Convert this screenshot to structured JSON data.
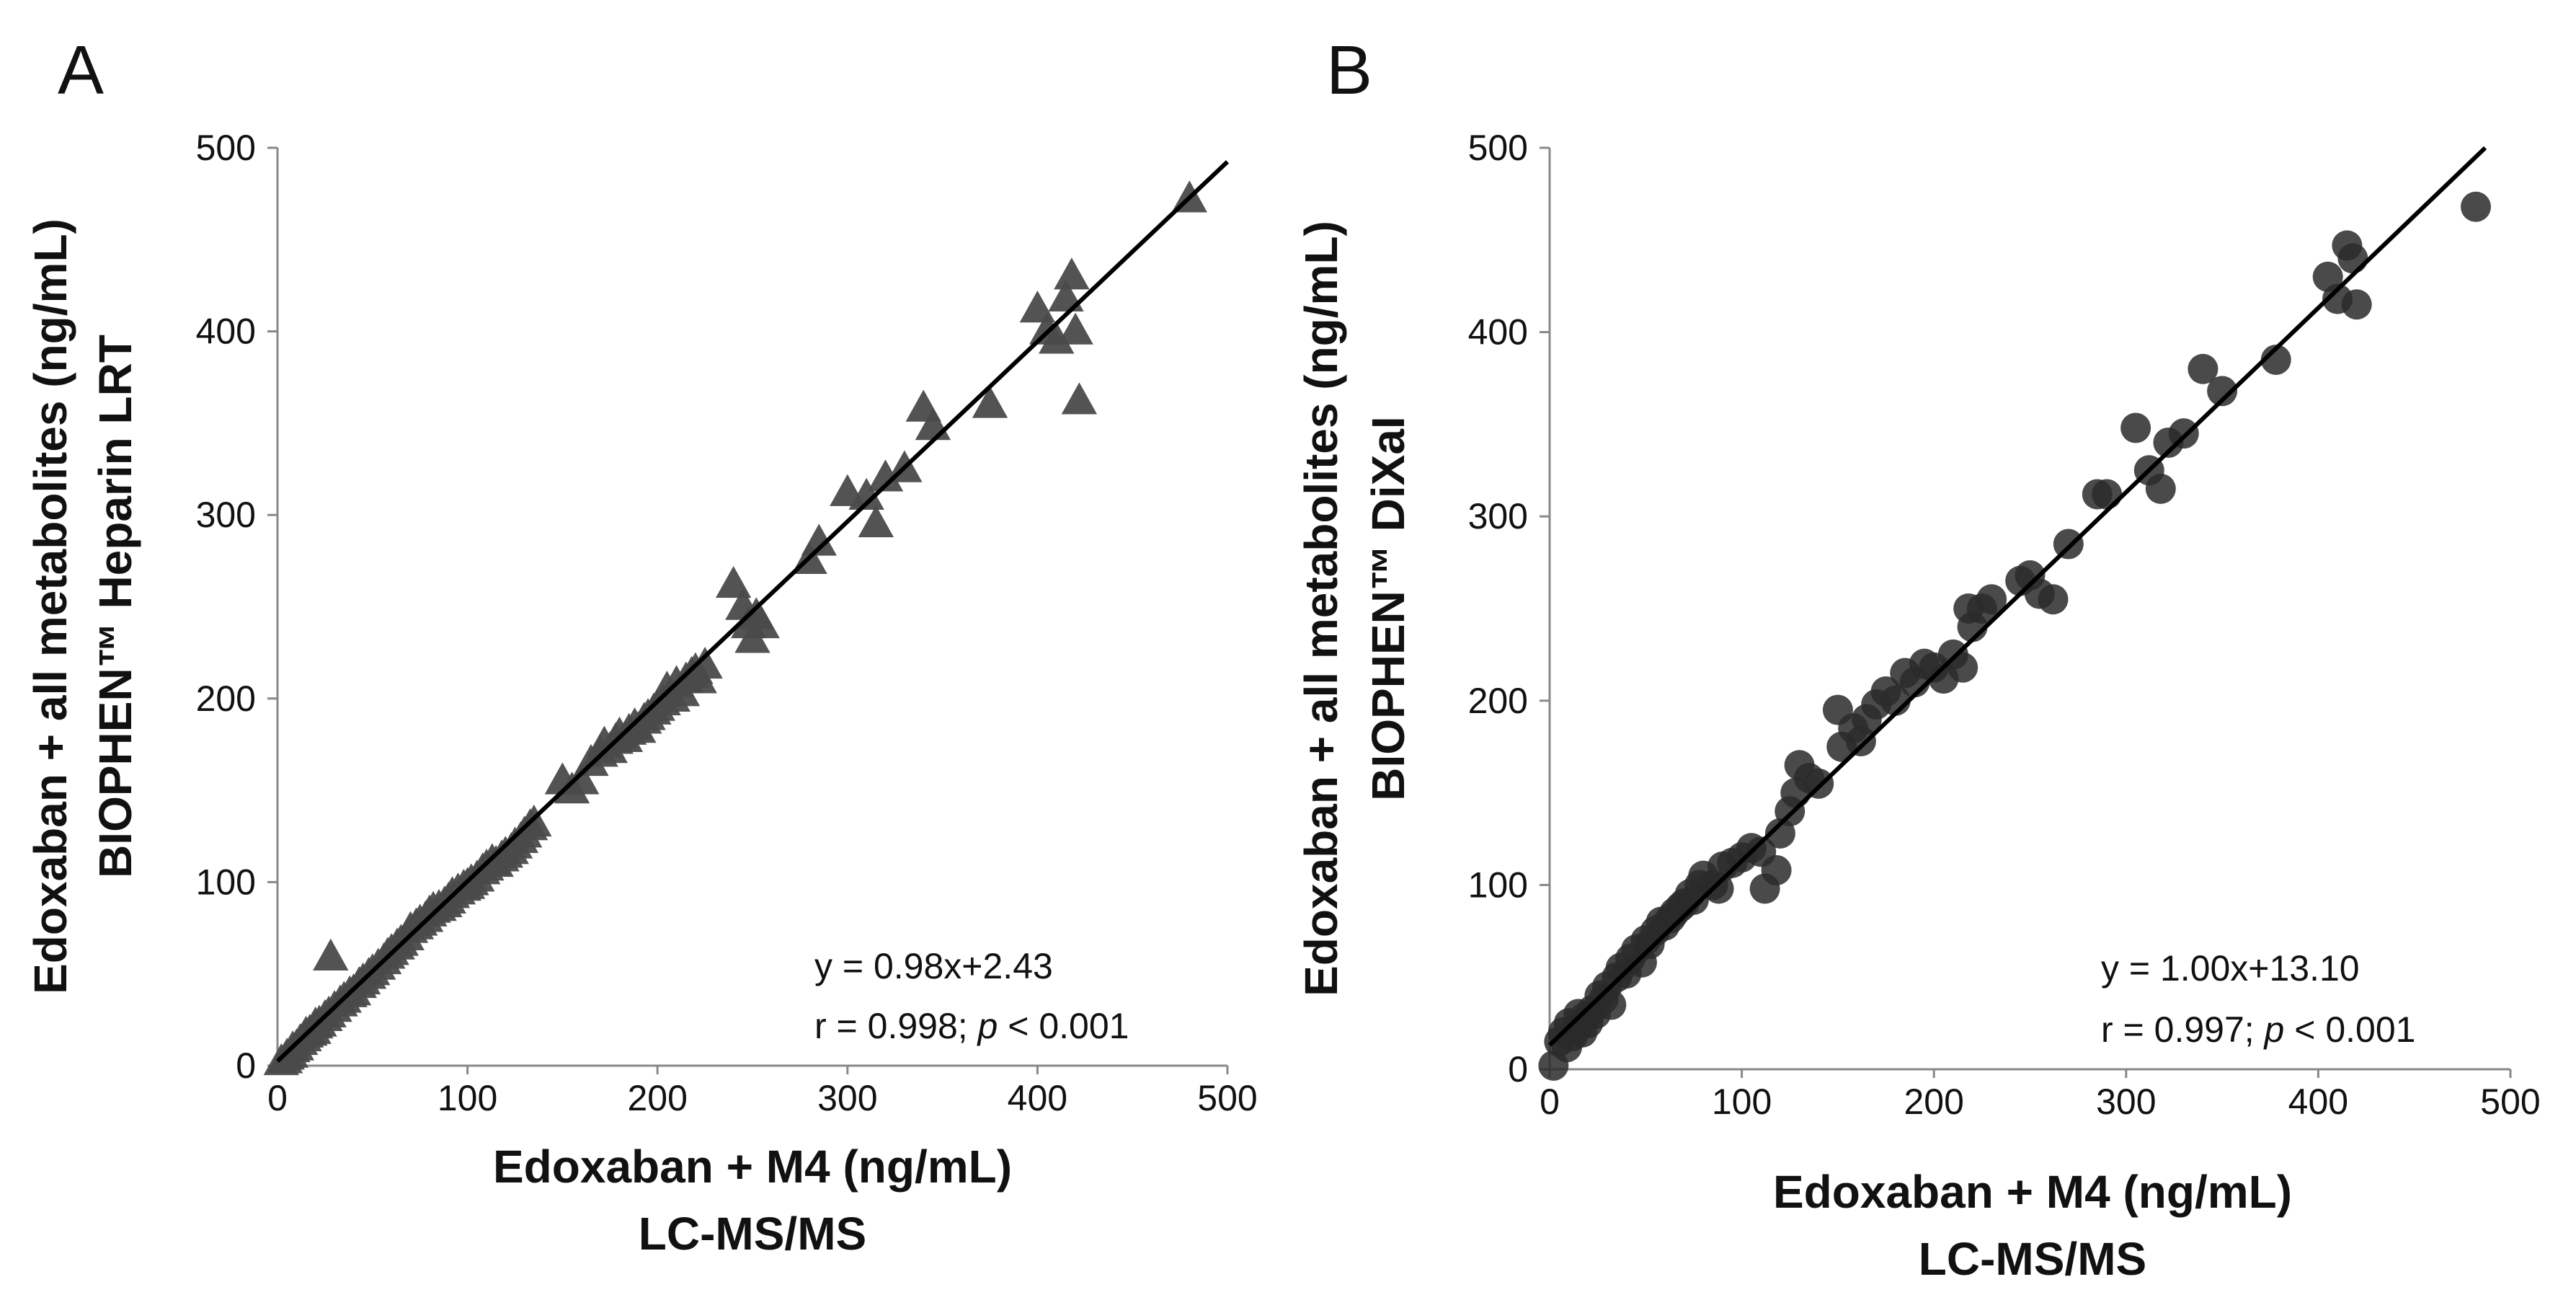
{
  "chart_data": [
    {
      "panel": "A",
      "type": "scatter",
      "marker": "triangle",
      "marker_color": "#4a4a4a",
      "xlabel": [
        "Edoxaban + M4 (ng/mL)",
        "LC-MS/MS"
      ],
      "ylabel": [
        "Edoxaban + all metabolites (ng/mL)",
        "BIOPHEN™ Heparin LRT"
      ],
      "xlim": [
        0,
        500
      ],
      "ylim": [
        0,
        500
      ],
      "xticks": [
        "0",
        "100",
        "200",
        "300",
        "400",
        "500"
      ],
      "yticks": [
        "0",
        "100",
        "200",
        "300",
        "400",
        "500"
      ],
      "equation": "y = 0.98x+2.43",
      "stats_prefix": "r = 0.998; ",
      "stats_p": "p",
      "stats_suffix": " < 0.001",
      "fit": {
        "slope": 0.98,
        "intercept": 2.43
      },
      "points": [
        [
          2,
          2
        ],
        [
          4,
          3
        ],
        [
          5,
          5
        ],
        [
          7,
          6
        ],
        [
          8,
          9
        ],
        [
          10,
          10
        ],
        [
          12,
          13
        ],
        [
          14,
          15
        ],
        [
          15,
          17
        ],
        [
          17,
          18
        ],
        [
          19,
          19
        ],
        [
          20,
          22
        ],
        [
          22,
          23
        ],
        [
          25,
          26
        ],
        [
          27,
          28
        ],
        [
          28,
          59
        ],
        [
          30,
          31
        ],
        [
          33,
          34
        ],
        [
          35,
          36
        ],
        [
          38,
          39
        ],
        [
          40,
          40
        ],
        [
          43,
          44
        ],
        [
          45,
          46
        ],
        [
          48,
          49
        ],
        [
          50,
          51
        ],
        [
          53,
          54
        ],
        [
          56,
          57
        ],
        [
          58,
          60
        ],
        [
          60,
          62
        ],
        [
          63,
          65
        ],
        [
          65,
          67
        ],
        [
          68,
          70
        ],
        [
          70,
          74
        ],
        [
          73,
          76
        ],
        [
          75,
          78
        ],
        [
          78,
          80
        ],
        [
          80,
          83
        ],
        [
          82,
          85
        ],
        [
          85,
          86
        ],
        [
          88,
          88
        ],
        [
          90,
          90
        ],
        [
          92,
          93
        ],
        [
          95,
          95
        ],
        [
          98,
          97
        ],
        [
          100,
          98
        ],
        [
          102,
          100
        ],
        [
          105,
          102
        ],
        [
          108,
          106
        ],
        [
          110,
          108
        ],
        [
          113,
          111
        ],
        [
          115,
          110
        ],
        [
          118,
          113
        ],
        [
          120,
          115
        ],
        [
          123,
          117
        ],
        [
          125,
          120
        ],
        [
          128,
          123
        ],
        [
          130,
          126
        ],
        [
          133,
          130
        ],
        [
          135,
          132
        ],
        [
          150,
          155
        ],
        [
          155,
          150
        ],
        [
          160,
          155
        ],
        [
          165,
          165
        ],
        [
          170,
          170
        ],
        [
          172,
          175
        ],
        [
          175,
          172
        ],
        [
          178,
          177
        ],
        [
          180,
          180
        ],
        [
          183,
          178
        ],
        [
          185,
          182
        ],
        [
          188,
          185
        ],
        [
          190,
          183
        ],
        [
          193,
          188
        ],
        [
          195,
          190
        ],
        [
          198,
          193
        ],
        [
          200,
          195
        ],
        [
          203,
          198
        ],
        [
          205,
          205
        ],
        [
          208,
          200
        ],
        [
          210,
          208
        ],
        [
          213,
          203
        ],
        [
          215,
          210
        ],
        [
          218,
          213
        ],
        [
          220,
          215
        ],
        [
          222,
          210
        ],
        [
          225,
          218
        ],
        [
          240,
          262
        ],
        [
          245,
          250
        ],
        [
          248,
          240
        ],
        [
          250,
          232
        ],
        [
          252,
          245
        ],
        [
          255,
          240
        ],
        [
          280,
          275
        ],
        [
          285,
          285
        ],
        [
          300,
          312
        ],
        [
          310,
          310
        ],
        [
          315,
          295
        ],
        [
          320,
          320
        ],
        [
          330,
          325
        ],
        [
          340,
          358
        ],
        [
          345,
          348
        ],
        [
          375,
          360
        ],
        [
          400,
          412
        ],
        [
          405,
          400
        ],
        [
          410,
          395
        ],
        [
          415,
          418
        ],
        [
          418,
          430
        ],
        [
          420,
          400
        ],
        [
          422,
          362
        ],
        [
          480,
          472
        ]
      ]
    },
    {
      "panel": "B",
      "type": "scatter",
      "marker": "circle",
      "marker_color": "#2a2a2a",
      "xlabel": [
        "Edoxaban + M4 (ng/mL)",
        "LC-MS/MS"
      ],
      "ylabel": [
        "Edoxaban + all metabolites (ng/mL)",
        "BIOPHEN™ DiXaI"
      ],
      "xlim": [
        0,
        500
      ],
      "ylim": [
        0,
        500
      ],
      "xticks": [
        "0",
        "100",
        "200",
        "300",
        "400",
        "500"
      ],
      "yticks": [
        "0",
        "100",
        "200",
        "300",
        "400",
        "500"
      ],
      "equation": "y = 1.00x+13.10",
      "stats_prefix": "r = 0.997; ",
      "stats_p": "p",
      "stats_suffix": " < 0.001",
      "fit": {
        "slope": 1.0,
        "intercept": 13.1
      },
      "points": [
        [
          2,
          2
        ],
        [
          5,
          15
        ],
        [
          7,
          20
        ],
        [
          9,
          12
        ],
        [
          10,
          25
        ],
        [
          12,
          18
        ],
        [
          14,
          22
        ],
        [
          15,
          30
        ],
        [
          17,
          20
        ],
        [
          18,
          28
        ],
        [
          20,
          25
        ],
        [
          22,
          32
        ],
        [
          24,
          30
        ],
        [
          26,
          40
        ],
        [
          28,
          38
        ],
        [
          30,
          45
        ],
        [
          32,
          35
        ],
        [
          35,
          50
        ],
        [
          37,
          55
        ],
        [
          40,
          52
        ],
        [
          42,
          60
        ],
        [
          45,
          65
        ],
        [
          48,
          58
        ],
        [
          50,
          70
        ],
        [
          52,
          68
        ],
        [
          55,
          75
        ],
        [
          58,
          80
        ],
        [
          60,
          78
        ],
        [
          63,
          82
        ],
        [
          65,
          85
        ],
        [
          68,
          88
        ],
        [
          70,
          90
        ],
        [
          73,
          95
        ],
        [
          75,
          92
        ],
        [
          78,
          100
        ],
        [
          80,
          105
        ],
        [
          85,
          100
        ],
        [
          88,
          98
        ],
        [
          90,
          110
        ],
        [
          95,
          112
        ],
        [
          100,
          115
        ],
        [
          105,
          120
        ],
        [
          110,
          118
        ],
        [
          112,
          98
        ],
        [
          118,
          108
        ],
        [
          120,
          128
        ],
        [
          125,
          140
        ],
        [
          128,
          150
        ],
        [
          130,
          165
        ],
        [
          135,
          158
        ],
        [
          140,
          155
        ],
        [
          150,
          195
        ],
        [
          152,
          175
        ],
        [
          158,
          185
        ],
        [
          162,
          178
        ],
        [
          165,
          190
        ],
        [
          170,
          198
        ],
        [
          175,
          205
        ],
        [
          180,
          200
        ],
        [
          185,
          215
        ],
        [
          190,
          210
        ],
        [
          195,
          220
        ],
        [
          200,
          218
        ],
        [
          205,
          212
        ],
        [
          210,
          225
        ],
        [
          215,
          218
        ],
        [
          218,
          250
        ],
        [
          220,
          240
        ],
        [
          225,
          250
        ],
        [
          230,
          255
        ],
        [
          245,
          265
        ],
        [
          250,
          268
        ],
        [
          255,
          258
        ],
        [
          262,
          255
        ],
        [
          270,
          285
        ],
        [
          285,
          312
        ],
        [
          290,
          312
        ],
        [
          305,
          348
        ],
        [
          312,
          325
        ],
        [
          318,
          315
        ],
        [
          322,
          340
        ],
        [
          330,
          345
        ],
        [
          340,
          380
        ],
        [
          350,
          368
        ],
        [
          378,
          385
        ],
        [
          405,
          430
        ],
        [
          410,
          418
        ],
        [
          415,
          447
        ],
        [
          418,
          440
        ],
        [
          420,
          415
        ],
        [
          482,
          468
        ]
      ]
    }
  ]
}
